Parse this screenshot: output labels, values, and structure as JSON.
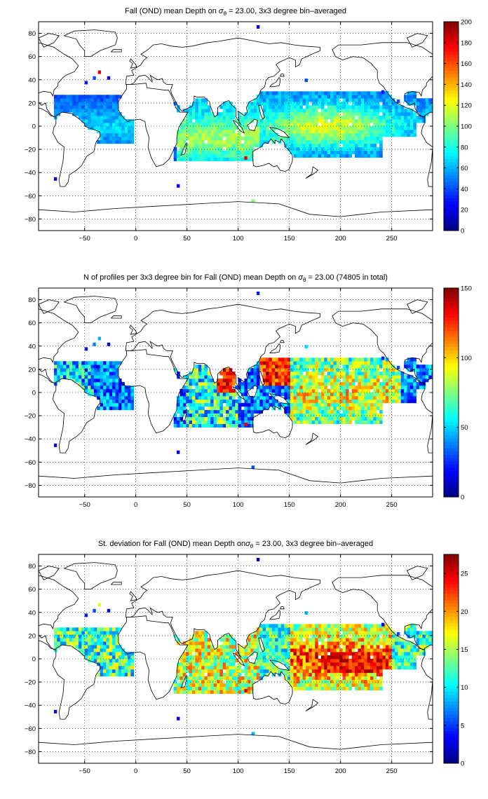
{
  "chart_data": [
    {
      "type": "heatmap",
      "title_pre": "Fall (OND) mean Depth on ",
      "title_sym": "σ",
      "title_sub": "θ",
      "title_post": " = 23.00, 3x3 degree bin–averaged",
      "xlim": [
        -95,
        290
      ],
      "ylim": [
        -90,
        90
      ],
      "xticks": [
        -50,
        0,
        50,
        100,
        150,
        200,
        250
      ],
      "yticks": [
        -80,
        -60,
        -40,
        -20,
        0,
        20,
        40,
        60,
        80
      ],
      "xtick_labels": [
        "−50",
        "0",
        "50",
        "100",
        "150",
        "200",
        "250"
      ],
      "ytick_labels": [
        "−80",
        "−60",
        "−40",
        "−20",
        "0",
        "20",
        "40",
        "60",
        "80"
      ],
      "grid": true,
      "colormap": "jet",
      "clim": [
        0,
        200
      ],
      "colorbar_ticks": [
        0,
        20,
        40,
        60,
        80,
        100,
        120,
        140,
        160,
        180,
        200
      ],
      "colorbar_labels": [
        "0",
        "20",
        "40",
        "60",
        "80",
        "100",
        "120",
        "140",
        "160",
        "180",
        "200"
      ],
      "field": "mean_depth"
    },
    {
      "type": "heatmap",
      "title_pre": "N of profiles per 3x3 degree bin for Fall (OND) mean Depth on ",
      "title_sym": "σ",
      "title_sub": "θ",
      "title_post": " = 23.00 (74805 in total)",
      "xlim": [
        -95,
        290
      ],
      "ylim": [
        -90,
        90
      ],
      "xticks": [
        -50,
        0,
        50,
        100,
        150,
        200,
        250
      ],
      "yticks": [
        -80,
        -60,
        -40,
        -20,
        0,
        20,
        40,
        60,
        80
      ],
      "xtick_labels": [
        "−50",
        "0",
        "50",
        "100",
        "150",
        "200",
        "250"
      ],
      "ytick_labels": [
        "−80",
        "−60",
        "−40",
        "−20",
        "0",
        "20",
        "40",
        "60",
        "80"
      ],
      "grid": true,
      "colormap": "jet",
      "clim": [
        0,
        150
      ],
      "colorbar_ticks": [
        0,
        50,
        100,
        150
      ],
      "colorbar_labels": [
        "0",
        "50",
        "100",
        "150"
      ],
      "field": "count"
    },
    {
      "type": "heatmap",
      "title_pre": "St. deviation for Fall (OND) mean Depth on",
      "title_sym": "σ",
      "title_sub": "θ",
      "title_post": " = 23.00, 3x3 degree bin–averaged",
      "xlim": [
        -95,
        290
      ],
      "ylim": [
        -90,
        90
      ],
      "xticks": [
        -50,
        0,
        50,
        100,
        150,
        200,
        250
      ],
      "yticks": [
        -80,
        -60,
        -40,
        -20,
        0,
        20,
        40,
        60,
        80
      ],
      "xtick_labels": [
        "−50",
        "0",
        "50",
        "100",
        "150",
        "200",
        "250"
      ],
      "ytick_labels": [
        "−80",
        "−60",
        "−40",
        "−20",
        "0",
        "20",
        "40",
        "60",
        "80"
      ],
      "grid": true,
      "colormap": "jet",
      "clim": [
        0,
        27.5
      ],
      "colorbar_ticks": [
        0,
        5,
        10,
        15,
        20,
        25
      ],
      "colorbar_labels": [
        "0",
        "5",
        "10",
        "15",
        "20",
        "25"
      ],
      "field": "std"
    }
  ]
}
